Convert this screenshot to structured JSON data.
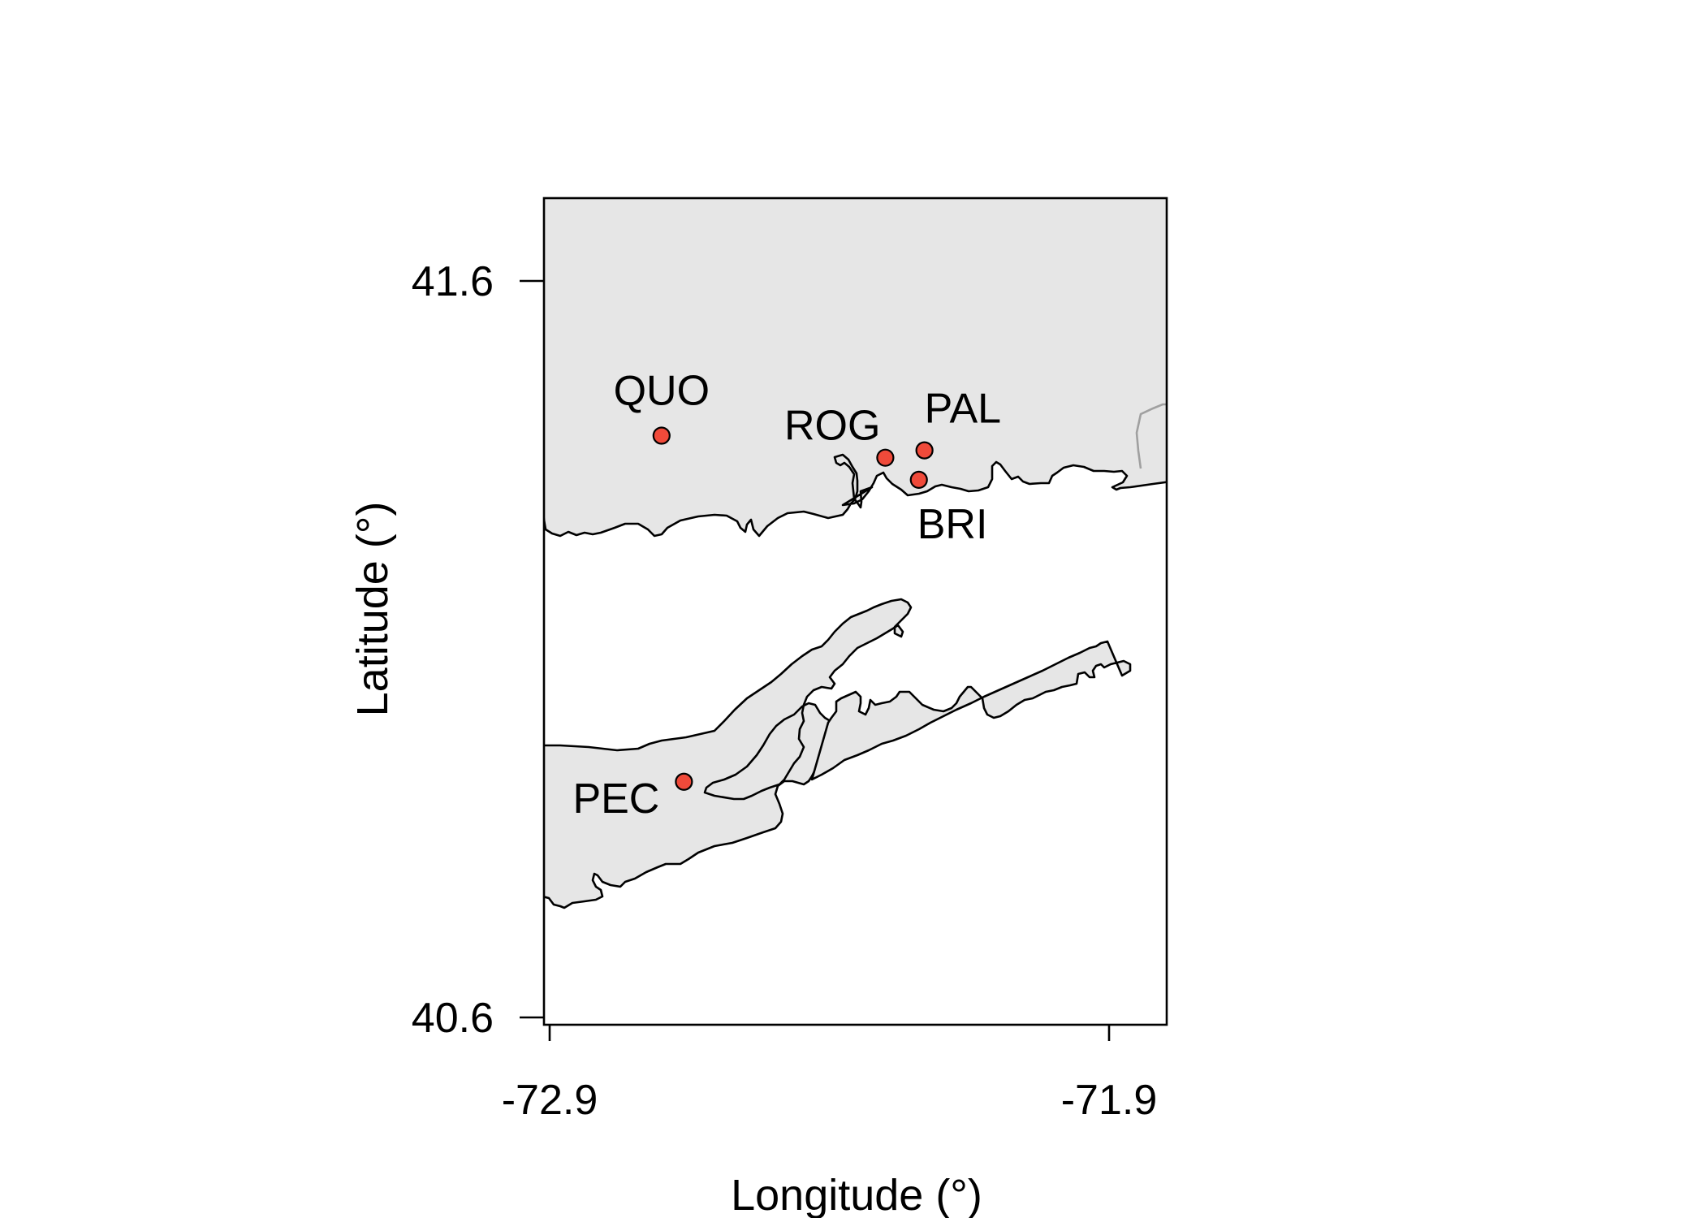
{
  "map": {
    "xlabel": "Longitude (°)",
    "ylabel": "Latitude (°)",
    "x_ticks": [
      {
        "value": -72.9,
        "label": "-72.9"
      },
      {
        "value": -71.9,
        "label": "-71.9"
      }
    ],
    "y_ticks": [
      {
        "value": 41.6,
        "label": "41.6"
      },
      {
        "value": 40.6,
        "label": "40.6"
      }
    ],
    "land_color": "#e6e6e6",
    "point_color": "#f04a3a",
    "sites": [
      {
        "code": "QUO",
        "lon": -72.7,
        "lat": 41.39
      },
      {
        "code": "ROG",
        "lon": -72.3,
        "lat": 41.36
      },
      {
        "code": "PAL",
        "lon": -72.23,
        "lat": 41.37
      },
      {
        "code": "BRI",
        "lon": -72.24,
        "lat": 41.33
      },
      {
        "code": "PEC",
        "lon": -72.66,
        "lat": 40.92
      }
    ]
  }
}
